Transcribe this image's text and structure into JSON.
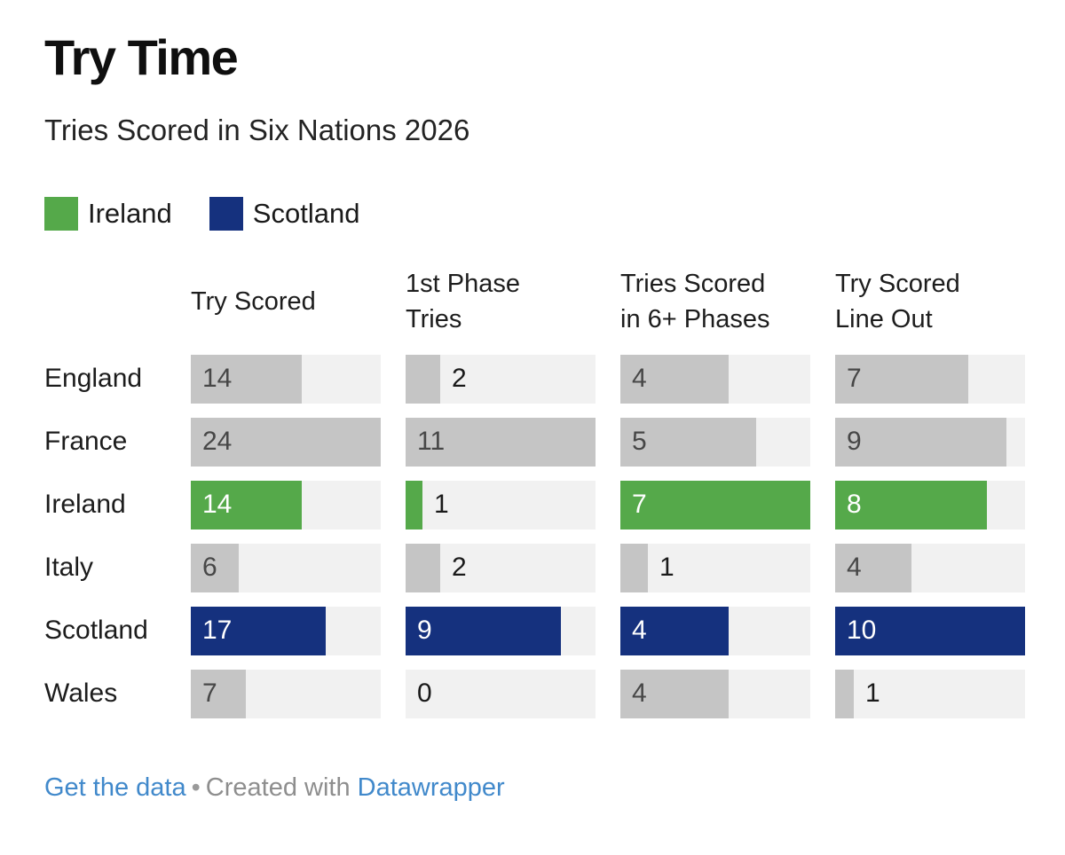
{
  "header": {
    "title": "Try Time",
    "subtitle": "Tries Scored in Six Nations 2026"
  },
  "legend": {
    "items": [
      {
        "label": "Ireland",
        "color": "#55a94a"
      },
      {
        "label": "Scotland",
        "color": "#15317e"
      }
    ]
  },
  "chart_data": {
    "type": "bar",
    "variant": "horizontal-bar-table",
    "title": "Try Time",
    "subtitle": "Tries Scored in Six Nations 2026",
    "columns": [
      {
        "label": "Try Scored",
        "max": 24
      },
      {
        "label": "1st Phase\nTries",
        "max": 11
      },
      {
        "label": "Tries Scored\nin 6+ Phases",
        "max": 7
      },
      {
        "label": "Try Scored\nLine Out",
        "max": 10
      }
    ],
    "rows": [
      {
        "label": "England",
        "values": [
          14,
          2,
          4,
          7
        ],
        "highlight": null
      },
      {
        "label": "France",
        "values": [
          24,
          11,
          5,
          9
        ],
        "highlight": null
      },
      {
        "label": "Ireland",
        "values": [
          14,
          1,
          7,
          8
        ],
        "highlight": "#55a94a"
      },
      {
        "label": "Italy",
        "values": [
          6,
          2,
          1,
          4
        ],
        "highlight": null
      },
      {
        "label": "Scotland",
        "values": [
          17,
          9,
          4,
          10
        ],
        "highlight": "#15317e"
      },
      {
        "label": "Wales",
        "values": [
          7,
          0,
          4,
          1
        ],
        "highlight": null
      }
    ],
    "colors": {
      "default_fill": "#c5c5c5",
      "track": "#f1f1f1",
      "label_inside_gray": "#474747",
      "label_inside_highlight": "#ffffff",
      "label_outside": "#1a1a1a"
    },
    "legend_position": "top",
    "grid": false
  },
  "footer": {
    "get_data_label": "Get the data",
    "separator": "•",
    "created_with": "Created with",
    "brand": "Datawrapper",
    "link_color": "#4189cb"
  }
}
